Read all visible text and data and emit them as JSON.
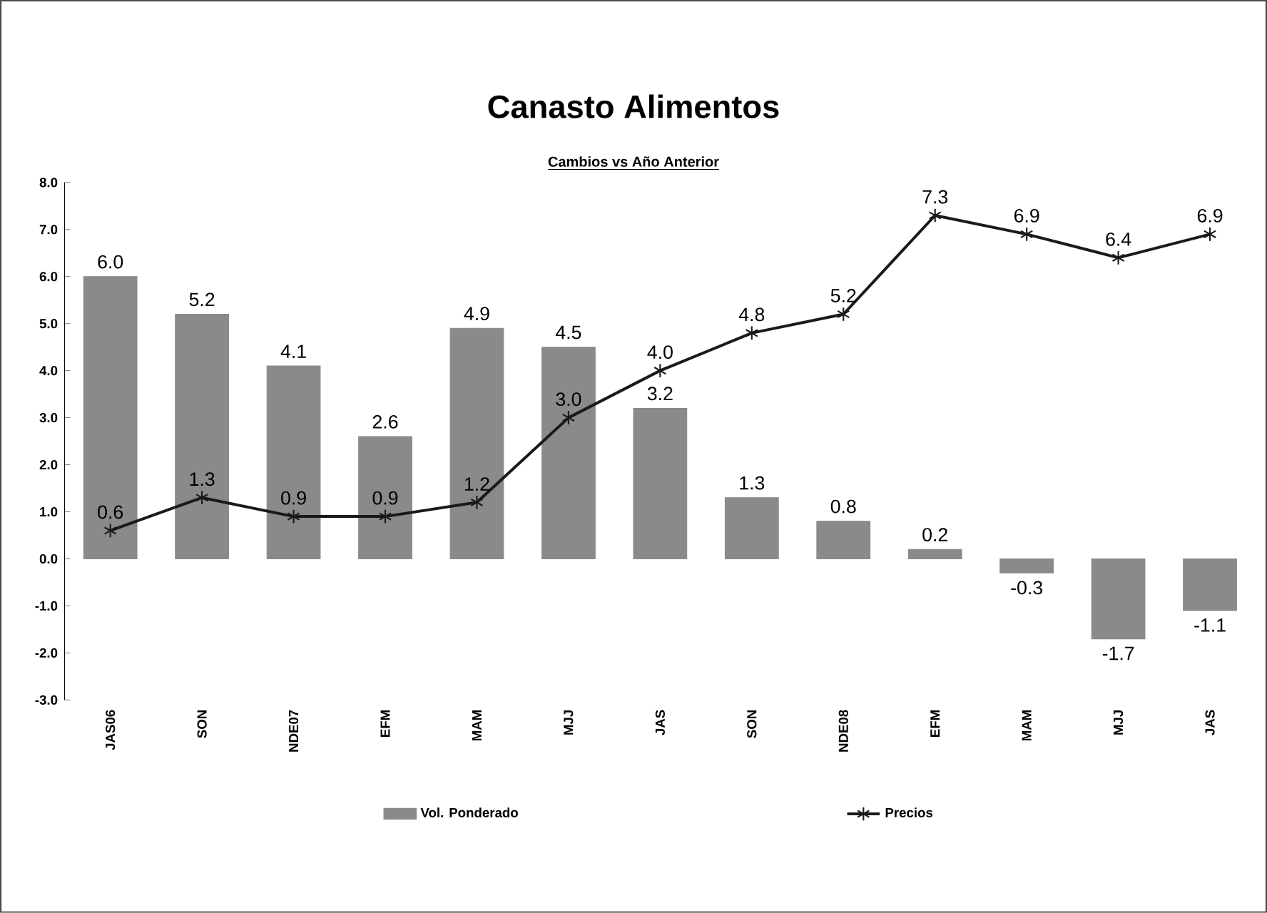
{
  "chart_data": {
    "type": "bar",
    "title": "Canasto Alimentos",
    "subtitle": "Cambios vs Año Anterior",
    "categories": [
      "JAS06",
      "SON",
      "NDE07",
      "EFM",
      "MAM",
      "MJJ",
      "JAS",
      "SON",
      "NDE08",
      "EFM",
      "MAM",
      "MJJ",
      "JAS"
    ],
    "series": [
      {
        "name": "Vol. Ponderado",
        "color": "#8a8a8a",
        "values": [
          6.0,
          5.2,
          4.1,
          2.6,
          4.9,
          4.5,
          3.2,
          1.3,
          0.8,
          0.2,
          -0.3,
          -1.7,
          -1.1
        ],
        "value_labels": [
          "6.0",
          "5.2",
          "4.1",
          "2.6",
          "4.9",
          "4.5",
          "3.2",
          "1.3",
          "0.8",
          "0.2",
          "-0.3",
          "-1.7",
          "-1.1"
        ]
      },
      {
        "name": "Precios",
        "type": "line",
        "color": "#1a1a1a",
        "marker": "cross",
        "values": [
          0.6,
          1.3,
          0.9,
          0.9,
          1.2,
          3.0,
          4.0,
          4.8,
          5.2,
          7.3,
          6.9,
          6.4,
          6.9
        ],
        "value_labels": [
          "0.6",
          "1.3",
          "0.9",
          "0.9",
          "1.2",
          "3.0",
          "4.0",
          "4.8",
          "5.2",
          "7.3",
          "6.9",
          "6.4",
          "6.9"
        ]
      }
    ],
    "ylim": [
      -3,
      8
    ],
    "yticks": [
      {
        "value": -3,
        "label": "-3.0"
      },
      {
        "value": -2,
        "label": "-2.0"
      },
      {
        "value": -1,
        "label": "-1.0"
      },
      {
        "value": 0,
        "label": "0.0"
      },
      {
        "value": 1,
        "label": "1.0"
      },
      {
        "value": 2,
        "label": "2.0"
      },
      {
        "value": 3,
        "label": "3.0"
      },
      {
        "value": 4,
        "label": "4.0"
      },
      {
        "value": 5,
        "label": "5.0"
      },
      {
        "value": 6,
        "label": "6.0"
      },
      {
        "value": 7,
        "label": "7.0"
      },
      {
        "value": 8,
        "label": "8.0"
      }
    ],
    "legend": "bottom",
    "grid": false
  }
}
